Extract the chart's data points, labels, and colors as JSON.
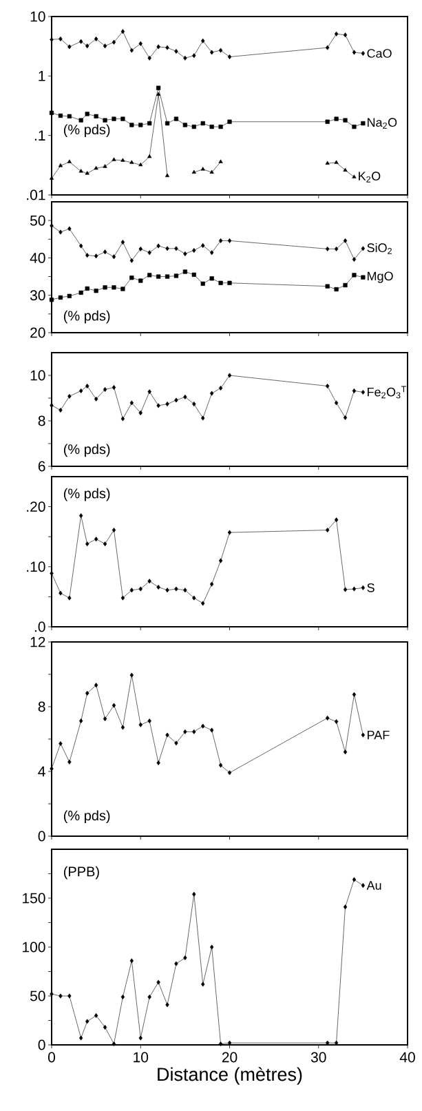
{
  "chart_data": [
    {
      "type": "line",
      "log": true,
      "tick_labels": "y",
      "xlim": [
        0,
        40
      ],
      "xticks": [
        0,
        10,
        20,
        30,
        40
      ],
      "ylim": [
        0.01,
        10
      ],
      "yticks": [
        {
          "value": 0.01,
          "label": ".01"
        },
        {
          "value": 0.1,
          "label": ".1"
        },
        1,
        10
      ],
      "annotations": [
        "(% pds)"
      ],
      "x": [
        0,
        1,
        2,
        3.3,
        4,
        5,
        6,
        7,
        8,
        9,
        10,
        11,
        12,
        13,
        14,
        15,
        16,
        17,
        18,
        19,
        20,
        31,
        32,
        33,
        34,
        35
      ],
      "series": [
        {
          "name": "CaO",
          "color": "#000000",
          "marker": "diamond",
          "values": [
            4.1,
            4.2,
            3.1,
            3.8,
            3.2,
            4.2,
            3.2,
            3.7,
            5.6,
            2.7,
            3.5,
            2.0,
            3.1,
            3.0,
            2.6,
            2.0,
            2.2,
            3.9,
            2.5,
            2.7,
            2.1,
            3.0,
            5.1,
            4.9,
            2.5,
            2.4
          ]
        },
        {
          "name": "Na$_{2}$O",
          "color": "#000000",
          "marker": "square",
          "values": [
            0.24,
            0.215,
            0.21,
            0.18,
            0.23,
            0.21,
            0.18,
            0.19,
            0.19,
            0.15,
            0.15,
            0.16,
            0.63,
            0.16,
            0.19,
            0.15,
            0.14,
            0.16,
            0.14,
            0.14,
            0.17,
            0.17,
            0.19,
            0.18,
            0.14,
            0.16
          ]
        },
        {
          "name": "K$_{2}$O",
          "color": "#000000",
          "marker": "triangle",
          "values": [
            0.019,
            0.031,
            0.036,
            0.025,
            0.023,
            0.028,
            0.03,
            0.039,
            0.038,
            0.035,
            0.032,
            0.044,
            0.49,
            0.021,
            null,
            null,
            0.024,
            0.027,
            0.024,
            0.036,
            null,
            0.034,
            0.035,
            0.026,
            0.02,
            null
          ]
        }
      ]
    },
    {
      "type": "line",
      "tick_labels": "y",
      "xlim": [
        0,
        40
      ],
      "xticks": [
        0,
        10,
        20,
        30,
        40
      ],
      "ylim": [
        20,
        55
      ],
      "yticks": [
        20,
        {
          "value": 25,
          "label": null
        },
        30,
        {
          "value": 35,
          "label": null
        },
        40,
        {
          "value": 45,
          "label": null
        },
        50
      ],
      "annotations": [
        "(% pds)"
      ],
      "x": [
        0,
        1,
        2,
        3.3,
        4,
        5,
        6,
        7,
        8,
        9,
        10,
        11,
        12,
        13,
        14,
        15,
        16,
        17,
        18,
        19,
        20,
        31,
        32,
        33,
        34,
        35
      ],
      "series": [
        {
          "name": "SiO$_{2}$",
          "color": "#000000",
          "marker": "diamond",
          "values": [
            48.6,
            46.9,
            47.8,
            43.2,
            40.7,
            40.5,
            41.6,
            40.3,
            44.2,
            39.3,
            42.4,
            41.4,
            43.2,
            42.5,
            42.5,
            41.1,
            42.0,
            43.3,
            41.4,
            44.6,
            44.6,
            42.4,
            42.4,
            44.6,
            39.6,
            42.5
          ]
        },
        {
          "name": "MgO",
          "color": "#000000",
          "marker": "square",
          "values": [
            28.8,
            29.4,
            29.8,
            30.7,
            31.8,
            31.2,
            32.1,
            32.1,
            31.7,
            34.7,
            33.9,
            35.4,
            35.0,
            35.0,
            35.2,
            36.3,
            35.5,
            33.1,
            34.5,
            33.3,
            33.3,
            32.4,
            31.6,
            32.7,
            35.4,
            34.8
          ]
        }
      ]
    },
    {
      "type": "line",
      "tick_labels": "y",
      "xlim": [
        0,
        40
      ],
      "xticks": [
        0,
        10,
        20,
        30,
        40
      ],
      "ylim": [
        6,
        11
      ],
      "yticks": [
        6,
        {
          "value": 7,
          "label": null
        },
        8,
        {
          "value": 9,
          "label": null
        },
        10
      ],
      "annotations": [
        "(% pds)"
      ],
      "x": [
        0,
        1,
        2,
        3.3,
        4,
        5,
        6,
        7,
        8,
        9,
        10,
        11,
        12,
        13,
        14,
        15,
        16,
        17,
        18,
        19,
        20,
        31,
        32,
        33,
        34,
        35
      ],
      "series": [
        {
          "name": "Fe$_{2}$O$_{3}$$^{T}$",
          "color": "#000000",
          "marker": "diamond",
          "values": [
            8.68,
            8.47,
            9.08,
            9.32,
            9.53,
            8.96,
            9.38,
            9.47,
            8.09,
            8.79,
            8.35,
            9.28,
            8.67,
            8.74,
            8.91,
            9.05,
            8.74,
            8.12,
            9.21,
            9.44,
            10.0,
            9.53,
            8.79,
            8.14,
            9.32,
            9.26
          ]
        }
      ]
    },
    {
      "type": "line",
      "tick_labels": "y",
      "xlim": [
        0,
        40
      ],
      "xticks": [
        0,
        10,
        20,
        30,
        40
      ],
      "ylim": [
        0,
        0.25
      ],
      "yticks": [
        {
          "value": 0,
          "label": ".0"
        },
        {
          "value": 0.05,
          "label": null
        },
        {
          "value": 0.1,
          "label": ".10"
        },
        {
          "value": 0.15,
          "label": null
        },
        {
          "value": 0.2,
          "label": ".20"
        }
      ],
      "annotations": [
        "(% pds)"
      ],
      "x": [
        0,
        1,
        2,
        3.3,
        4,
        5,
        6,
        7,
        8,
        9,
        10,
        11,
        12,
        13,
        14,
        15,
        16,
        17,
        18,
        19,
        20,
        31,
        32,
        33,
        34,
        35
      ],
      "series": [
        {
          "name": "S",
          "color": "#000000",
          "marker": "diamond",
          "values": [
            0.089,
            0.056,
            0.048,
            0.185,
            0.138,
            0.146,
            0.138,
            0.161,
            0.048,
            0.061,
            0.063,
            0.076,
            0.066,
            0.061,
            0.063,
            0.061,
            0.048,
            0.039,
            0.071,
            0.11,
            0.157,
            0.161,
            0.178,
            0.062,
            0.063,
            0.065
          ]
        }
      ]
    },
    {
      "type": "line",
      "tick_labels": "y",
      "xlim": [
        0,
        40
      ],
      "xticks": [
        0,
        10,
        20,
        30,
        40
      ],
      "ylim": [
        0,
        12
      ],
      "yticks": [
        0,
        {
          "value": 2,
          "label": null
        },
        4,
        {
          "value": 6,
          "label": null
        },
        8,
        {
          "value": 10,
          "label": null
        },
        12
      ],
      "annotations": [
        "(% pds)"
      ],
      "x": [
        0,
        1,
        2,
        3.3,
        4,
        5,
        6,
        7,
        8,
        9,
        10,
        11,
        12,
        13,
        14,
        15,
        16,
        17,
        18,
        19,
        20,
        31,
        32,
        33,
        34,
        35
      ],
      "series": [
        {
          "name": "PAF",
          "color": "#000000",
          "marker": "diamond",
          "values": [
            4.17,
            5.72,
            4.58,
            7.12,
            8.83,
            9.33,
            7.25,
            8.08,
            6.72,
            9.95,
            6.88,
            7.12,
            4.53,
            6.25,
            5.75,
            6.45,
            6.45,
            6.8,
            6.55,
            4.38,
            3.92,
            7.3,
            7.08,
            5.2,
            8.75,
            6.25
          ]
        }
      ]
    },
    {
      "type": "line",
      "xlabel": "Distance (mètres)",
      "xlim": [
        0,
        40
      ],
      "xticks": [
        0,
        10,
        20,
        30,
        40
      ],
      "ylim": [
        0,
        200
      ],
      "yticks": [
        0,
        {
          "value": 25,
          "label": null
        },
        50,
        {
          "value": 75,
          "label": null
        },
        100,
        {
          "value": 125,
          "label": null
        },
        150,
        {
          "value": 175,
          "label": null
        }
      ],
      "annotations": [
        "(PPB)"
      ],
      "x": [
        0,
        1,
        2,
        3.3,
        4,
        5,
        6,
        7,
        8,
        9,
        10,
        11,
        12,
        13,
        14,
        15,
        16,
        17,
        18,
        19,
        20,
        31,
        32,
        33,
        34,
        35
      ],
      "series": [
        {
          "name": "Au",
          "color": "#000000",
          "marker": "diamond",
          "values": [
            52,
            50,
            50,
            7,
            24,
            30,
            18,
            1,
            49,
            86,
            7,
            49,
            64,
            41,
            83,
            89,
            154,
            62,
            100,
            1,
            2,
            2,
            2,
            141,
            169,
            163
          ]
        }
      ]
    }
  ]
}
